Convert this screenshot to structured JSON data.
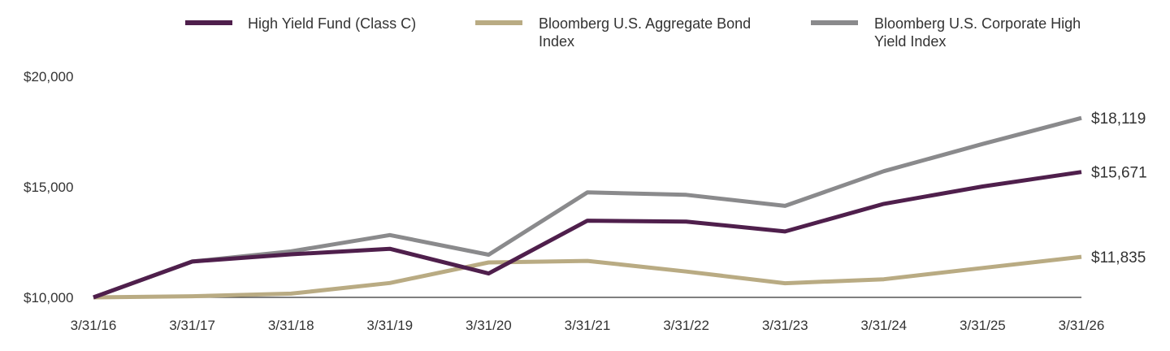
{
  "chart_data": {
    "type": "line",
    "x": [
      "3/31/16",
      "3/31/17",
      "3/31/18",
      "3/31/19",
      "3/31/20",
      "3/31/21",
      "3/31/22",
      "3/31/23",
      "3/31/24",
      "3/31/25",
      "3/31/26"
    ],
    "ylim": [
      10000,
      20000
    ],
    "yticks": [
      10000,
      15000,
      20000
    ],
    "ytick_labels": [
      "$10,000",
      "$15,000",
      "$20,000"
    ],
    "legend_position": "top",
    "grid": false,
    "series": [
      {
        "name": "High Yield Fund (Class C)",
        "color": "#4f1f4c",
        "values": [
          10000,
          11620,
          11950,
          12200,
          11080,
          13470,
          13430,
          12980,
          14230,
          15020,
          15671
        ],
        "end_label": "$15,671"
      },
      {
        "name": "Bloomberg U.S. Aggregate Bond Index",
        "legend_lines": [
          "Bloomberg U.S. Aggregate Bond",
          "Index"
        ],
        "color": "#b9ab83",
        "values": [
          10000,
          10050,
          10170,
          10650,
          11580,
          11650,
          11170,
          10640,
          10820,
          11330,
          11835
        ],
        "end_label": "$11,835"
      },
      {
        "name": "Bloomberg U.S. Corporate High Yield Index",
        "legend_lines": [
          "Bloomberg U.S. Corporate High",
          "Yield Index"
        ],
        "color": "#8a8a8c",
        "values": [
          10000,
          11620,
          12080,
          12820,
          11930,
          14750,
          14640,
          14140,
          15710,
          16940,
          18119
        ],
        "end_label": "$18,119"
      }
    ]
  }
}
